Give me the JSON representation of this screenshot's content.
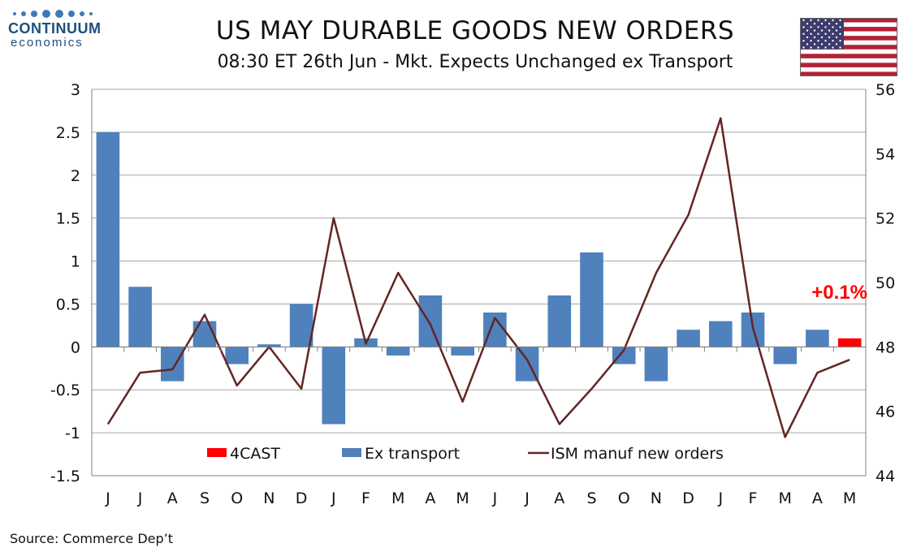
{
  "logo": {
    "name": "CONTINUUM",
    "sub": "economics"
  },
  "title": "US MAY DURABLE GOODS NEW ORDERS",
  "subtitle": "08:30 ET 26th Jun - Mkt. Expects Unchanged ex Transport",
  "source": "Source: Commerce Dep’t",
  "flag": {
    "icon": "us-flag-icon",
    "colors": {
      "red": "#b22234",
      "white": "#ffffff",
      "blue": "#3c3b6e"
    }
  },
  "chart_data": {
    "type": "bar",
    "categories": [
      "J",
      "J",
      "A",
      "S",
      "O",
      "N",
      "D",
      "J",
      "F",
      "M",
      "A",
      "M",
      "J",
      "J",
      "A",
      "S",
      "O",
      "N",
      "D",
      "J",
      "F",
      "M",
      "A",
      "M"
    ],
    "left_axis": {
      "ylim": [
        -1.5,
        3
      ],
      "ticks": [
        "-1.5",
        "-1",
        "-0.5",
        "0",
        "0.5",
        "1",
        "1.5",
        "2",
        "2.5",
        "3"
      ]
    },
    "right_axis": {
      "ylim": [
        44,
        56
      ],
      "ticks": [
        "44",
        "46",
        "48",
        "50",
        "52",
        "54",
        "56"
      ]
    },
    "series": [
      {
        "name": "Ex transport",
        "kind": "bar",
        "axis": "left",
        "color": "#4f81bd",
        "values": [
          2.5,
          0.7,
          -0.4,
          0.3,
          -0.2,
          0.03,
          0.5,
          -0.9,
          0.1,
          -0.1,
          0.6,
          -0.1,
          0.4,
          -0.4,
          0.6,
          1.1,
          -0.2,
          -0.4,
          0.2,
          0.3,
          0.4,
          -0.2,
          0.2,
          null
        ]
      },
      {
        "name": "4CAST",
        "kind": "bar",
        "axis": "left",
        "color": "#ff0000",
        "values": [
          null,
          null,
          null,
          null,
          null,
          null,
          null,
          null,
          null,
          null,
          null,
          null,
          null,
          null,
          null,
          null,
          null,
          null,
          null,
          null,
          null,
          null,
          null,
          0.1
        ]
      },
      {
        "name": "ISM manuf new orders",
        "kind": "line",
        "axis": "right",
        "color": "#632523",
        "values": [
          45.6,
          47.2,
          47.3,
          49.0,
          46.8,
          48.0,
          46.7,
          52.0,
          48.1,
          50.3,
          48.7,
          46.3,
          48.9,
          47.6,
          45.6,
          46.7,
          47.9,
          50.3,
          52.1,
          55.1,
          48.6,
          45.2,
          47.2,
          47.6
        ]
      }
    ],
    "annotation": {
      "text": "+0.1%",
      "color": "#ff0000"
    },
    "legend": {
      "position": "bottom-inside",
      "items": [
        "4CAST",
        "Ex transport",
        "ISM manuf new orders"
      ]
    },
    "grid": true
  }
}
